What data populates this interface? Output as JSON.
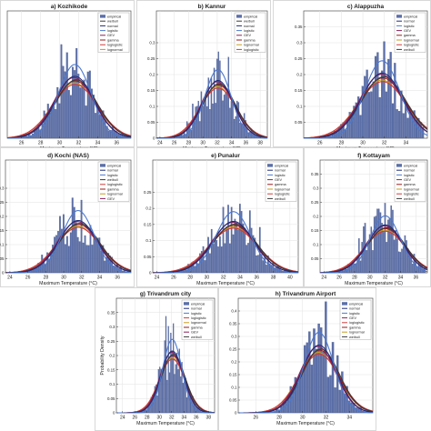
{
  "colors": {
    "bars": "#5b6fa8",
    "bar_edge": "#3f4f86",
    "normal": "#1f2b7a",
    "weibull": "#3a3a3a",
    "logistic": "#4b79d0",
    "gev": "#8a1f5a",
    "loglogistic": "#d03a3a",
    "gamma": "#9a1a1a",
    "lognormal": "#c79a1e"
  },
  "shared": {
    "xlabel": "Maximum Temperature (°C)",
    "ylabel": "Probability Density"
  },
  "chart_data": [
    {
      "type": "histogram",
      "title": "a) Kozhikode",
      "xlim": [
        24.5,
        37.5
      ],
      "xticks": [
        26,
        28,
        30,
        32,
        34,
        36
      ],
      "ylim": [
        0,
        0.4
      ],
      "yticks": [],
      "mean": 31.6,
      "sd": 2.05,
      "legend": [
        "empirical",
        "weibull",
        "normal",
        "logistic",
        "GEV",
        "gamma",
        "loglogistic",
        "lognormal"
      ]
    },
    {
      "type": "histogram",
      "title": "b) Kannur",
      "xlim": [
        23.5,
        39
      ],
      "xticks": [
        24,
        26,
        28,
        30,
        32,
        34,
        36,
        38
      ],
      "ylim": [
        0,
        0.4
      ],
      "yticks": [
        0,
        0.05,
        0.1,
        0.15,
        0.2,
        0.25,
        0.3
      ],
      "mean": 32.1,
      "sd": 2.2,
      "legend": [
        "empirical",
        "weibull",
        "normal",
        "logistic",
        "GEV",
        "gamma",
        "lognormal",
        "loglogistic"
      ]
    },
    {
      "type": "histogram",
      "title": "c) Alappuzha",
      "xlim": [
        24.5,
        36
      ],
      "xticks": [
        26,
        28,
        30,
        32,
        34
      ],
      "ylim": [
        0,
        0.4
      ],
      "yticks": [
        0.05,
        0.1,
        0.15,
        0.2,
        0.25,
        0.3,
        0.35
      ],
      "mean": 31.8,
      "sd": 1.95,
      "legend": [
        "empirical",
        "normal",
        "logistic",
        "GEV",
        "gamma",
        "lognormal",
        "loglogistic",
        "weibull"
      ]
    },
    {
      "type": "histogram",
      "title": "d) Kochi  (NAS)",
      "xlim": [
        23.5,
        37.5
      ],
      "xticks": [
        24,
        26,
        28,
        30,
        32,
        34,
        36
      ],
      "ylim": [
        0,
        0.4
      ],
      "yticks": [
        0,
        0.05,
        0.1,
        0.15,
        0.2,
        0.25,
        0.3
      ],
      "mean": 31.6,
      "sd": 2.15,
      "legend": [
        "empirical",
        "normal",
        "logistic",
        "weibull",
        "loglogistic",
        "gamma",
        "lognormal",
        "GEV"
      ]
    },
    {
      "type": "histogram",
      "title": "e) Punalur",
      "xlim": [
        23.5,
        41
      ],
      "xticks": [
        24,
        26,
        28,
        30,
        32,
        34,
        36,
        38,
        40
      ],
      "ylim": [
        0,
        0.35
      ],
      "yticks": [
        0,
        0.05,
        0.1,
        0.15,
        0.2,
        0.25
      ],
      "mean": 33.2,
      "sd": 2.5,
      "legend": [
        "empirical",
        "normal",
        "logistic",
        "GEV",
        "gamma",
        "lognormal",
        "loglogistic",
        "weibull"
      ]
    },
    {
      "type": "histogram",
      "title": "f) Kottayam",
      "xlim": [
        23.5,
        37.5
      ],
      "xticks": [
        24,
        26,
        28,
        30,
        32,
        34,
        36
      ],
      "ylim": [
        0,
        0.4
      ],
      "yticks": [
        0.05,
        0.1,
        0.15,
        0.2,
        0.25,
        0.3,
        0.35
      ],
      "mean": 32.0,
      "sd": 2.35,
      "legend": [
        "empirical",
        "normal",
        "logistic",
        "GEV",
        "gamma",
        "lognormal",
        "loglogistic",
        "weibull"
      ]
    },
    {
      "type": "histogram",
      "title": "g) Trivandrum city",
      "xlim": [
        23,
        39
      ],
      "xticks": [
        24,
        26,
        28,
        30,
        32,
        34,
        36,
        38
      ],
      "ylim": [
        0,
        0.4
      ],
      "yticks": [
        0,
        0.05,
        0.1,
        0.15,
        0.2,
        0.25,
        0.3,
        0.35
      ],
      "mean": 32.1,
      "sd": 1.85,
      "legend": [
        "empirical",
        "normal",
        "logistic",
        "loglogistic",
        "lognormal",
        "gamma",
        "GEV",
        "weibull"
      ]
    },
    {
      "type": "histogram",
      "title": "h) Trivandrum Airport",
      "xlim": [
        24.5,
        36
      ],
      "xticks": [
        26,
        28,
        30,
        32,
        34
      ],
      "ylim": [
        0,
        0.45
      ],
      "yticks": [
        0,
        0.05,
        0.1,
        0.15,
        0.2,
        0.25,
        0.3,
        0.35,
        0.4
      ],
      "mean": 31.4,
      "sd": 1.5,
      "legend": [
        "empirical",
        "normal",
        "logistic",
        "GEV",
        "loglogistic",
        "gamma",
        "lognormal",
        "weibull"
      ]
    }
  ]
}
